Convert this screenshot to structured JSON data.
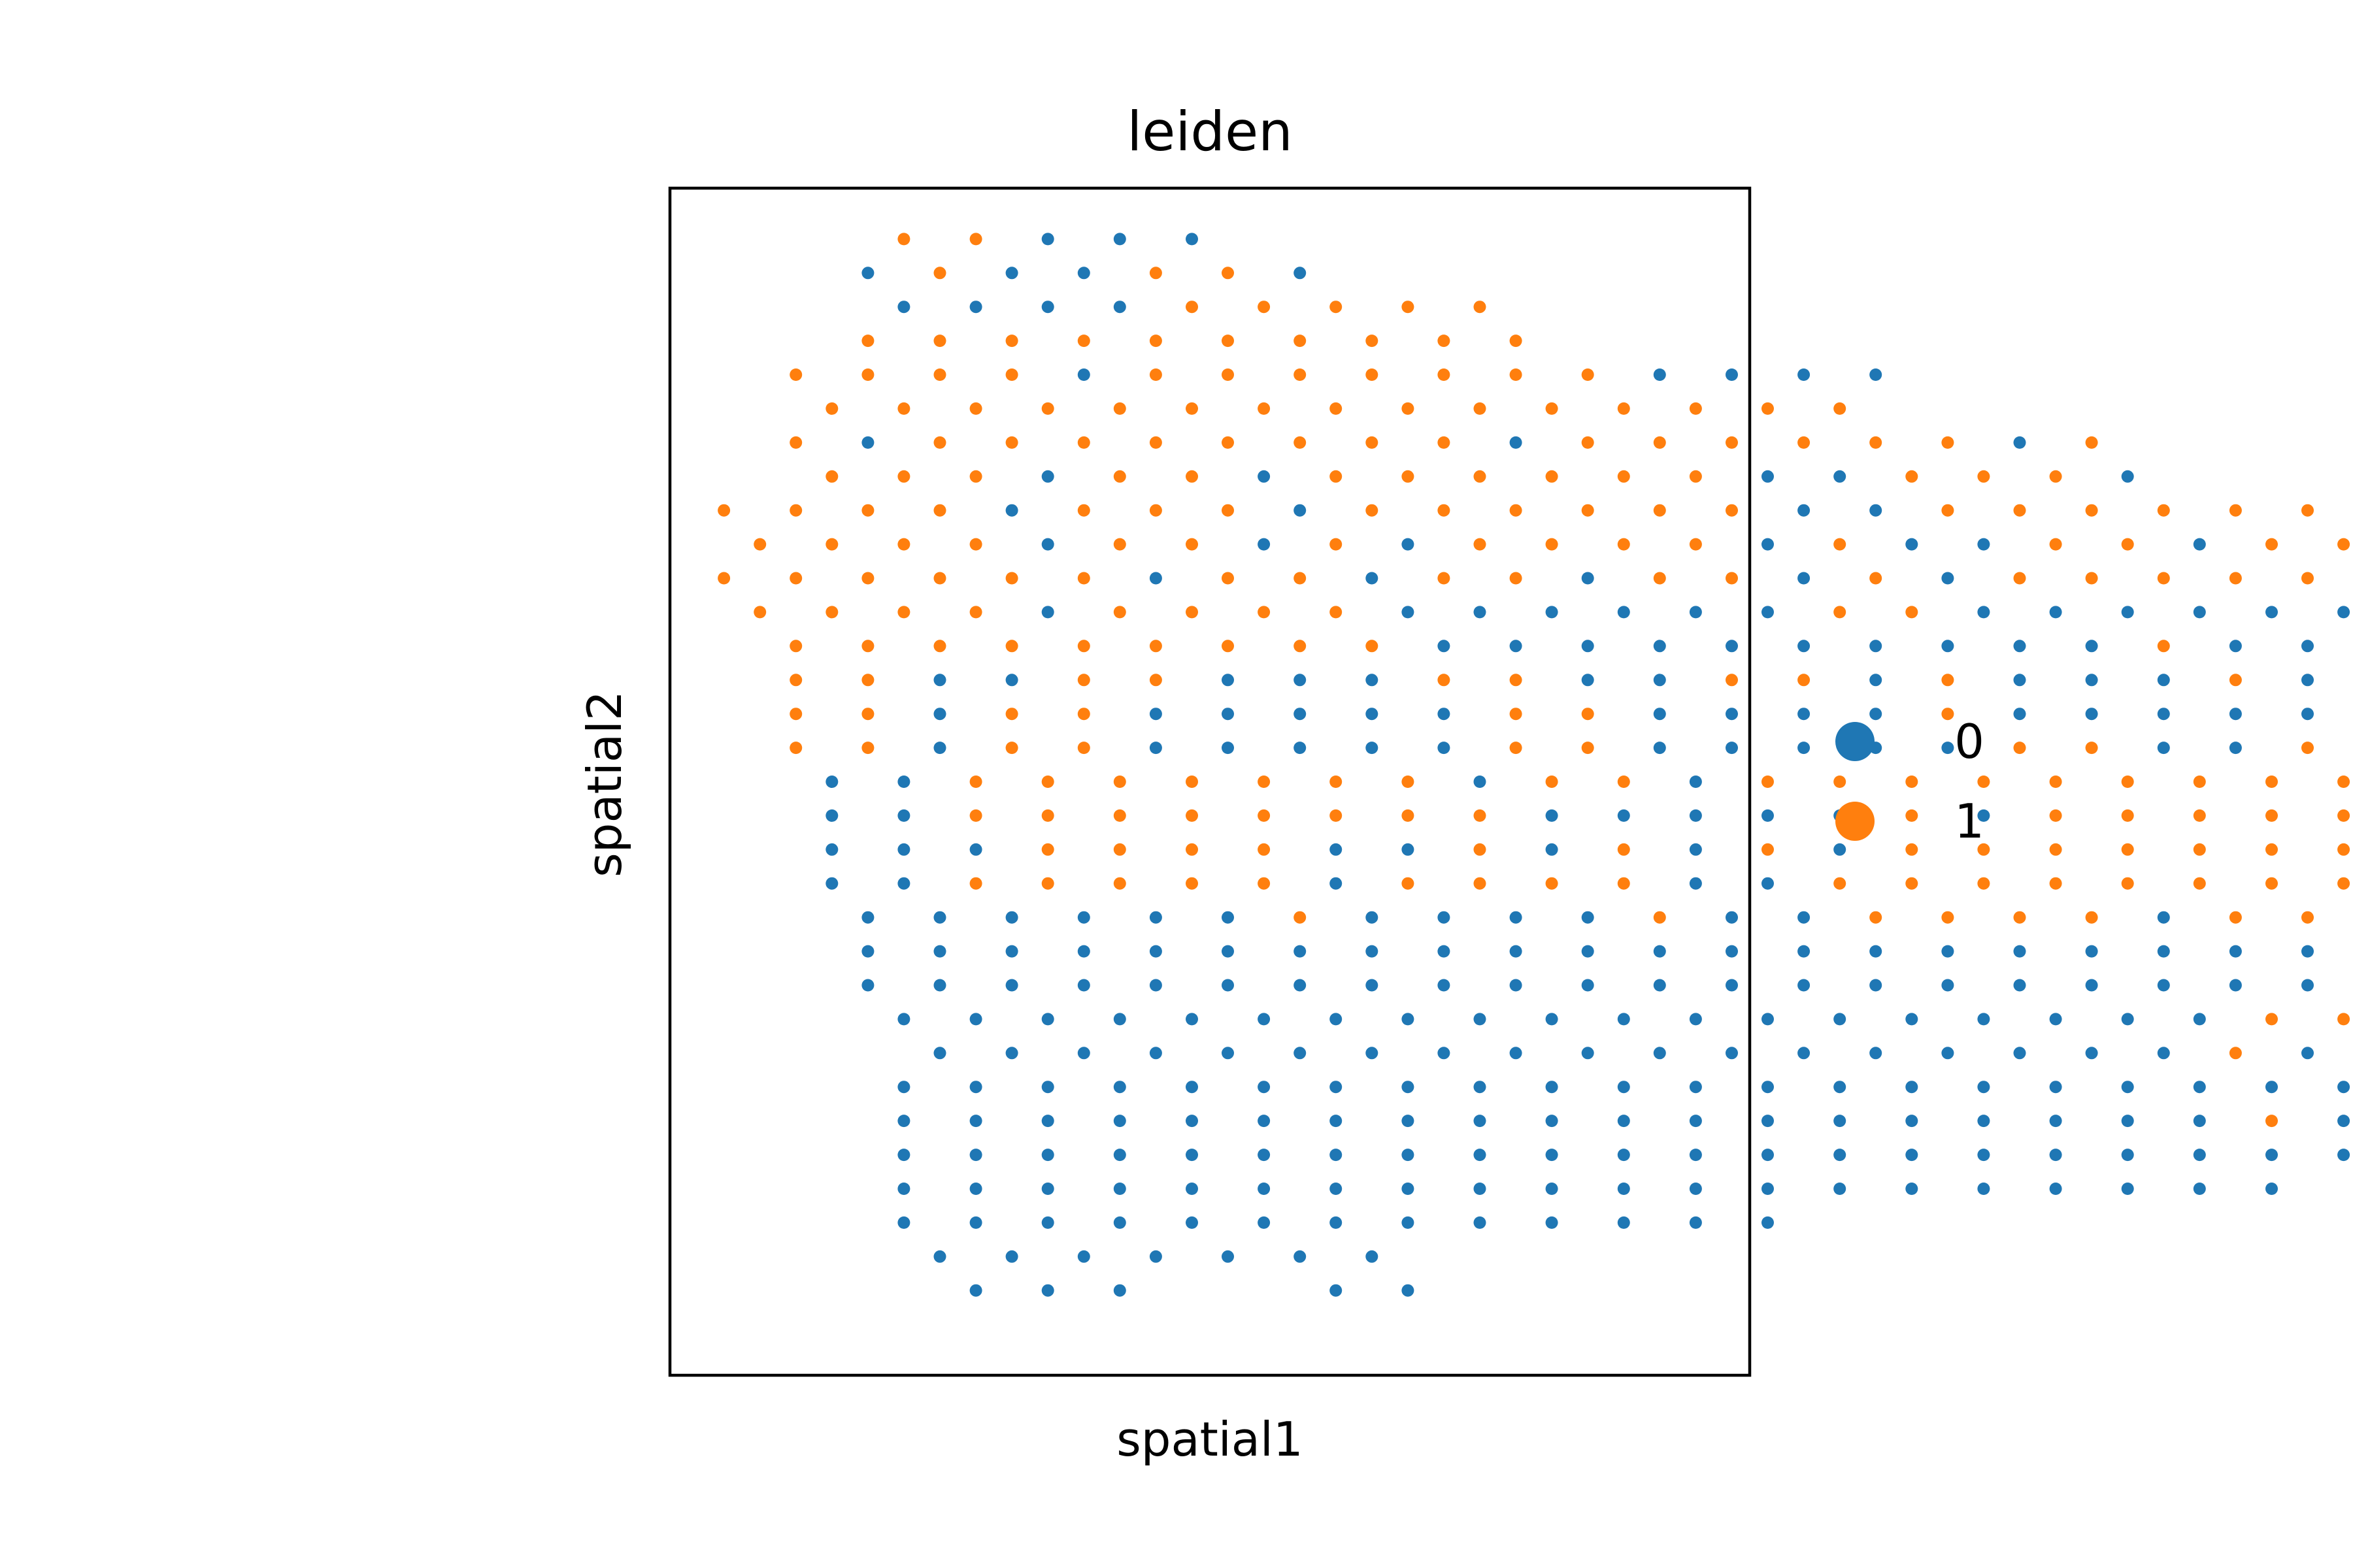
{
  "chart_data": {
    "type": "scatter",
    "title": "leiden",
    "xlabel": "spatial1",
    "ylabel": "spatial2",
    "xticks": [],
    "yticks": [],
    "grid": false,
    "legend_position": "right",
    "legend": [
      {
        "label": "0",
        "color": "#1f77b4"
      },
      {
        "label": "1",
        "color": "#ff7f0e"
      }
    ],
    "x_start": 1,
    "row_y_start": 0,
    "xlim": [
      -0.5,
      29.5
    ],
    "ylim": [
      33.5,
      -1.5
    ],
    "encoding": "Each row string lists spots left to right on the hexagonal spot grid; '.' means no spot, '0' is cluster 0, '1' is cluster 1. Spot x = x_start + column index, spot y = row_y_start + row index.",
    "rows": [
      ".....1.1.0.0.0..............",
      "....0.1.0.0.1.1.0...........",
      ".....0.0.0.0.1.1.1.1.1......",
      "....1.1.1.1.1.1.1.1.1.1.....",
      "..1.1.1.1.0.1.1.1.1.1.1.1.0.0.0.0",
      "...1.1.1.1.1.1.1.1.1.1.1.1.1.1.1",
      "..1.0.1.1.1.1.1.1.1.1.0.1.1.1.1.1.1.0.1",
      "...1.1.1.0.1.1.0.1.1.1.1.1.1.0.0.1.1.1.0",
      "1.1.1.1.0.1.1.1.0.1.1.1.1.1.1.0.0.1.1.1.1.1.1.1",
      ".1.1.1.1.0.1.1.0.1.0.1.1.1.1.0.1.0.0.1.1.0.1.1.1.1.1.1.1",
      "1.1.1.1.1.1.0.1.1.0.1.1.0.1.1.0.1.0.1.1.1.1.1.1.1.1.1.1.1",
      ".1.1.1.1.0.1.1.1.1.0.0.0.0.0.0.1.1.0.0.0.0.0.0.1.0.0.1.1.1",
      "..1.1.1.1.1.1.1.1.1.0.0.0.0.0.0.0.0.0.0.1.0.0.1.0.0.1.1.1",
      "..1.1.0.0.1.1.0.0.0.1.1.0.0.1.1.0.1.0.0.0.1.0.0.1.1.1.0.0",
      "..1.1.0.1.1.0.0.0.0.0.1.1.0.0.0.0.1.0.0.0.0.0.0.0.1.1.1.1",
      "..1.1.0.1.1.0.0.0.0.0.1.1.0.0.0.0.0.1.1.0.0.1.1.0.0.1.1.1",
      "...0.0.1.1.1.1.1.1.1.0.1.1.0.1.1.1.1.1.1.1.1.1.1.1.1.1.1",
      "...0.0.1.1.1.1.1.1.1.1.0.0.0.0.0.1.0.1.1.1.1.1.1.1.1.1.1",
      "...0.0.0.1.1.1.1.0.0.1.0.1.0.1.0.1.1.1.1.1.1.1.1.1.1.1.1",
      "...0.0.1.1.1.1.1.0.1.1.1.1.0.0.1.1.1.1.1.1.1.1.1.1.0.1.1",
      "....0.0.0.0.0.0.1.0.0.0.0.1.0.0.1.1.1.1.0.1.1.1.1.1.0.1.1",
      "....0.0.0.0.0.0.0.0.0.0.0.0.0.0.0.0.0.0.0.0.0.0.1.0.0.0.0",
      "....0.0.0.0.0.0.0.0.0.0.0.0.0.0.0.0.0.0.0.0.0.1.0.0.0.0.0.1",
      ".....0.0.0.0.0.0.0.0.0.0.0.0.0.0.0.0.0.0.0.1.1.1.1.1.1.1.1.1",
      "......0.0.0.0.0.0.0.0.0.0.0.0.0.0.0.0.0.0.1.0.1.0.0.0.0",
      ".....0.0.0.0.0.0.0.0.0.0.0.0.0.0.0.0.0.0.0.0.0.0.0.0.0",
      ".....0.0.0.0.0.0.0.0.0.0.0.0.0.0.0.0.0.0.0.1.0.1.0",
      ".....0.0.0.0.0.0.0.0.0.0.0.0.0.0.0.0.0.0.0.0.0.0.0.0",
      ".....0.0.0.0.0.0.0.0.0.0.0.0.0.0.0.0.0.0.0.0",
      ".....0.0.0.0.0.0.0.0.0.0.0.0.0",
      "......0.0.0.0.0.0.0",
      ".......0.0.0.....0.0"
    ]
  }
}
